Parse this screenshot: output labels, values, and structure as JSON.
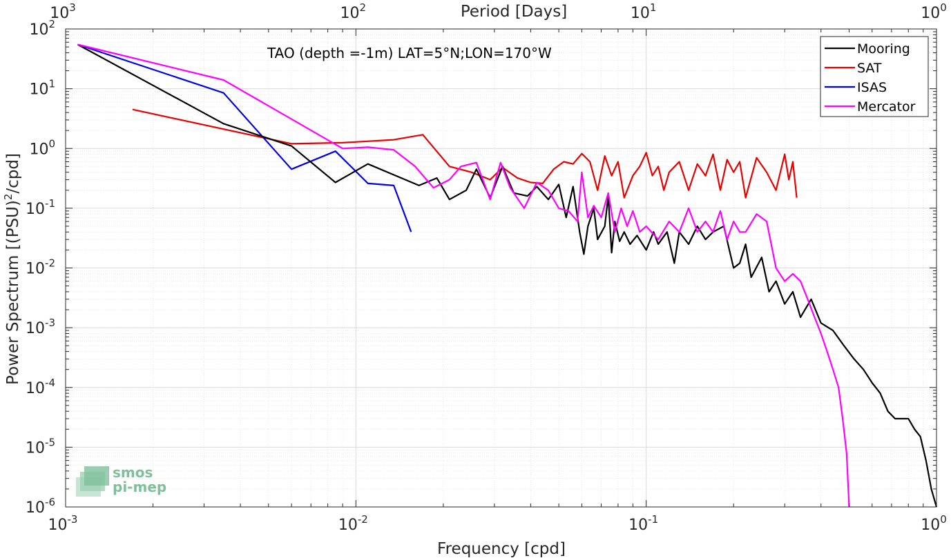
{
  "chart_data": {
    "type": "line",
    "title": "",
    "annotation": "TAO (depth =-1m) LAT=5°N;LON=170°W",
    "xlabel": "Frequency [cpd]",
    "ylabel_main": "Power Spectrum [(PSU)",
    "ylabel_sup": "2",
    "ylabel_tail": "/cpd]",
    "top_xlabel": "Period [Days]",
    "xscale": "log",
    "yscale": "log",
    "xlim": [
      0.001,
      1
    ],
    "ylim": [
      1e-06,
      100
    ],
    "grid": true,
    "legend_position": "top-right",
    "x_ticks": [
      {
        "base": "10",
        "exp": "-3"
      },
      {
        "base": "10",
        "exp": "-2"
      },
      {
        "base": "10",
        "exp": "-1"
      },
      {
        "base": "10",
        "exp": "0"
      }
    ],
    "top_ticks": [
      {
        "base": "10",
        "exp": "3"
      },
      {
        "base": "10",
        "exp": "2"
      },
      {
        "base": "10",
        "exp": "1"
      },
      {
        "base": "10",
        "exp": "0"
      }
    ],
    "y_ticks": [
      {
        "base": "10",
        "exp": "2"
      },
      {
        "base": "10",
        "exp": "1"
      },
      {
        "base": "10",
        "exp": "0"
      },
      {
        "base": "10",
        "exp": "-1"
      },
      {
        "base": "10",
        "exp": "-2"
      },
      {
        "base": "10",
        "exp": "-3"
      },
      {
        "base": "10",
        "exp": "-4"
      },
      {
        "base": "10",
        "exp": "-5"
      },
      {
        "base": "10",
        "exp": "-6"
      }
    ],
    "series": [
      {
        "name": "Mooring",
        "color": "#000000",
        "points": [
          [
            0.0011,
            55
          ],
          [
            0.0035,
            2.6
          ],
          [
            0.006,
            1.1
          ],
          [
            0.0085,
            0.27
          ],
          [
            0.011,
            0.55
          ],
          [
            0.0165,
            0.24
          ],
          [
            0.019,
            0.32
          ],
          [
            0.021,
            0.14
          ],
          [
            0.024,
            0.2
          ],
          [
            0.026,
            0.45
          ],
          [
            0.029,
            0.15
          ],
          [
            0.032,
            0.5
          ],
          [
            0.035,
            0.18
          ],
          [
            0.039,
            0.16
          ],
          [
            0.042,
            0.23
          ],
          [
            0.046,
            0.14
          ],
          [
            0.05,
            0.25
          ],
          [
            0.053,
            0.07
          ],
          [
            0.056,
            0.23
          ],
          [
            0.059,
            0.04
          ],
          [
            0.061,
            0.017
          ],
          [
            0.063,
            0.05
          ],
          [
            0.066,
            0.1
          ],
          [
            0.068,
            0.03
          ],
          [
            0.072,
            0.05
          ],
          [
            0.074,
            0.16
          ],
          [
            0.076,
            0.018
          ],
          [
            0.078,
            0.06
          ],
          [
            0.081,
            0.028
          ],
          [
            0.084,
            0.04
          ],
          [
            0.088,
            0.025
          ],
          [
            0.093,
            0.035
          ],
          [
            0.1,
            0.02
          ],
          [
            0.106,
            0.04
          ],
          [
            0.11,
            0.025
          ],
          [
            0.118,
            0.04
          ],
          [
            0.125,
            0.012
          ],
          [
            0.13,
            0.04
          ],
          [
            0.14,
            0.025
          ],
          [
            0.15,
            0.05
          ],
          [
            0.16,
            0.03
          ],
          [
            0.17,
            0.04
          ],
          [
            0.185,
            0.05
          ],
          [
            0.2,
            0.01
          ],
          [
            0.21,
            0.012
          ],
          [
            0.22,
            0.025
          ],
          [
            0.23,
            0.007
          ],
          [
            0.25,
            0.015
          ],
          [
            0.265,
            0.004
          ],
          [
            0.28,
            0.006
          ],
          [
            0.3,
            0.0025
          ],
          [
            0.32,
            0.004
          ],
          [
            0.34,
            0.0015
          ],
          [
            0.37,
            0.003
          ],
          [
            0.4,
            0.0012
          ],
          [
            0.44,
            0.0009
          ],
          [
            0.48,
            0.0005
          ],
          [
            0.52,
            0.0003
          ],
          [
            0.56,
            0.0002
          ],
          [
            0.6,
            0.00012
          ],
          [
            0.64,
            8e-05
          ],
          [
            0.68,
            4e-05
          ],
          [
            0.72,
            3e-05
          ],
          [
            0.76,
            3e-05
          ],
          [
            0.8,
            3e-05
          ],
          [
            0.84,
            2e-05
          ],
          [
            0.88,
            1.5e-05
          ],
          [
            0.92,
            6e-06
          ],
          [
            0.96,
            2e-06
          ],
          [
            1.0,
            1e-06
          ]
        ]
      },
      {
        "name": "SAT",
        "color": "#e60000",
        "points": [
          [
            0.0017,
            4.5
          ],
          [
            0.006,
            1.2
          ],
          [
            0.009,
            1.25
          ],
          [
            0.0135,
            1.4
          ],
          [
            0.017,
            1.7
          ],
          [
            0.021,
            0.5
          ],
          [
            0.025,
            0.4
          ],
          [
            0.029,
            0.3
          ],
          [
            0.032,
            0.48
          ],
          [
            0.036,
            0.32
          ],
          [
            0.04,
            0.27
          ],
          [
            0.044,
            0.26
          ],
          [
            0.048,
            0.45
          ],
          [
            0.052,
            0.6
          ],
          [
            0.056,
            0.55
          ],
          [
            0.06,
            0.82
          ],
          [
            0.064,
            0.6
          ],
          [
            0.068,
            0.2
          ],
          [
            0.072,
            0.75
          ],
          [
            0.076,
            0.35
          ],
          [
            0.08,
            0.6
          ],
          [
            0.084,
            0.15
          ],
          [
            0.09,
            0.35
          ],
          [
            0.095,
            0.5
          ],
          [
            0.1,
            0.85
          ],
          [
            0.105,
            0.35
          ],
          [
            0.11,
            0.5
          ],
          [
            0.115,
            0.2
          ],
          [
            0.12,
            0.4
          ],
          [
            0.13,
            0.6
          ],
          [
            0.14,
            0.2
          ],
          [
            0.15,
            0.55
          ],
          [
            0.16,
            0.35
          ],
          [
            0.17,
            0.8
          ],
          [
            0.18,
            0.2
          ],
          [
            0.19,
            0.65
          ],
          [
            0.2,
            0.4
          ],
          [
            0.21,
            0.6
          ],
          [
            0.22,
            0.15
          ],
          [
            0.24,
            0.7
          ],
          [
            0.26,
            0.4
          ],
          [
            0.28,
            0.2
          ],
          [
            0.3,
            0.8
          ],
          [
            0.31,
            0.3
          ],
          [
            0.32,
            0.6
          ],
          [
            0.33,
            0.15
          ]
        ]
      },
      {
        "name": "ISAS",
        "color": "#0000e6",
        "points": [
          [
            0.0011,
            55
          ],
          [
            0.0035,
            8.5
          ],
          [
            0.006,
            0.45
          ],
          [
            0.0085,
            0.9
          ],
          [
            0.011,
            0.26
          ],
          [
            0.0135,
            0.24
          ],
          [
            0.0155,
            0.04
          ]
        ]
      },
      {
        "name": "Mercator",
        "color": "#ff00ff",
        "points": [
          [
            0.0011,
            55
          ],
          [
            0.0035,
            14
          ],
          [
            0.009,
            1.0
          ],
          [
            0.011,
            1.05
          ],
          [
            0.0135,
            0.95
          ],
          [
            0.016,
            0.5
          ],
          [
            0.0185,
            0.22
          ],
          [
            0.021,
            0.3
          ],
          [
            0.023,
            0.5
          ],
          [
            0.026,
            0.58
          ],
          [
            0.029,
            0.14
          ],
          [
            0.0315,
            0.58
          ],
          [
            0.034,
            0.22
          ],
          [
            0.038,
            0.1
          ],
          [
            0.042,
            0.27
          ],
          [
            0.046,
            0.2
          ],
          [
            0.05,
            0.1
          ],
          [
            0.054,
            0.09
          ],
          [
            0.058,
            0.06
          ],
          [
            0.06,
            0.4
          ],
          [
            0.063,
            0.07
          ],
          [
            0.066,
            0.11
          ],
          [
            0.07,
            0.07
          ],
          [
            0.074,
            0.18
          ],
          [
            0.078,
            0.04
          ],
          [
            0.082,
            0.1
          ],
          [
            0.086,
            0.05
          ],
          [
            0.09,
            0.09
          ],
          [
            0.095,
            0.04
          ],
          [
            0.1,
            0.05
          ],
          [
            0.11,
            0.03
          ],
          [
            0.12,
            0.06
          ],
          [
            0.13,
            0.04
          ],
          [
            0.14,
            0.1
          ],
          [
            0.15,
            0.04
          ],
          [
            0.16,
            0.06
          ],
          [
            0.17,
            0.04
          ],
          [
            0.18,
            0.09
          ],
          [
            0.19,
            0.03
          ],
          [
            0.2,
            0.06
          ],
          [
            0.21,
            0.04
          ],
          [
            0.22,
            0.04
          ],
          [
            0.24,
            0.08
          ],
          [
            0.26,
            0.06
          ],
          [
            0.28,
            0.01
          ],
          [
            0.3,
            0.006
          ],
          [
            0.32,
            0.008
          ],
          [
            0.34,
            0.006
          ],
          [
            0.36,
            0.003
          ],
          [
            0.38,
            0.0015
          ],
          [
            0.4,
            0.0008
          ],
          [
            0.42,
            0.0004
          ],
          [
            0.44,
            0.0002
          ],
          [
            0.46,
            0.0001
          ],
          [
            0.475,
            3e-05
          ],
          [
            0.49,
            8e-06
          ],
          [
            0.5,
            1e-06
          ]
        ]
      }
    ]
  },
  "logo": {
    "line1": "smos",
    "line2": "pi-mep"
  }
}
